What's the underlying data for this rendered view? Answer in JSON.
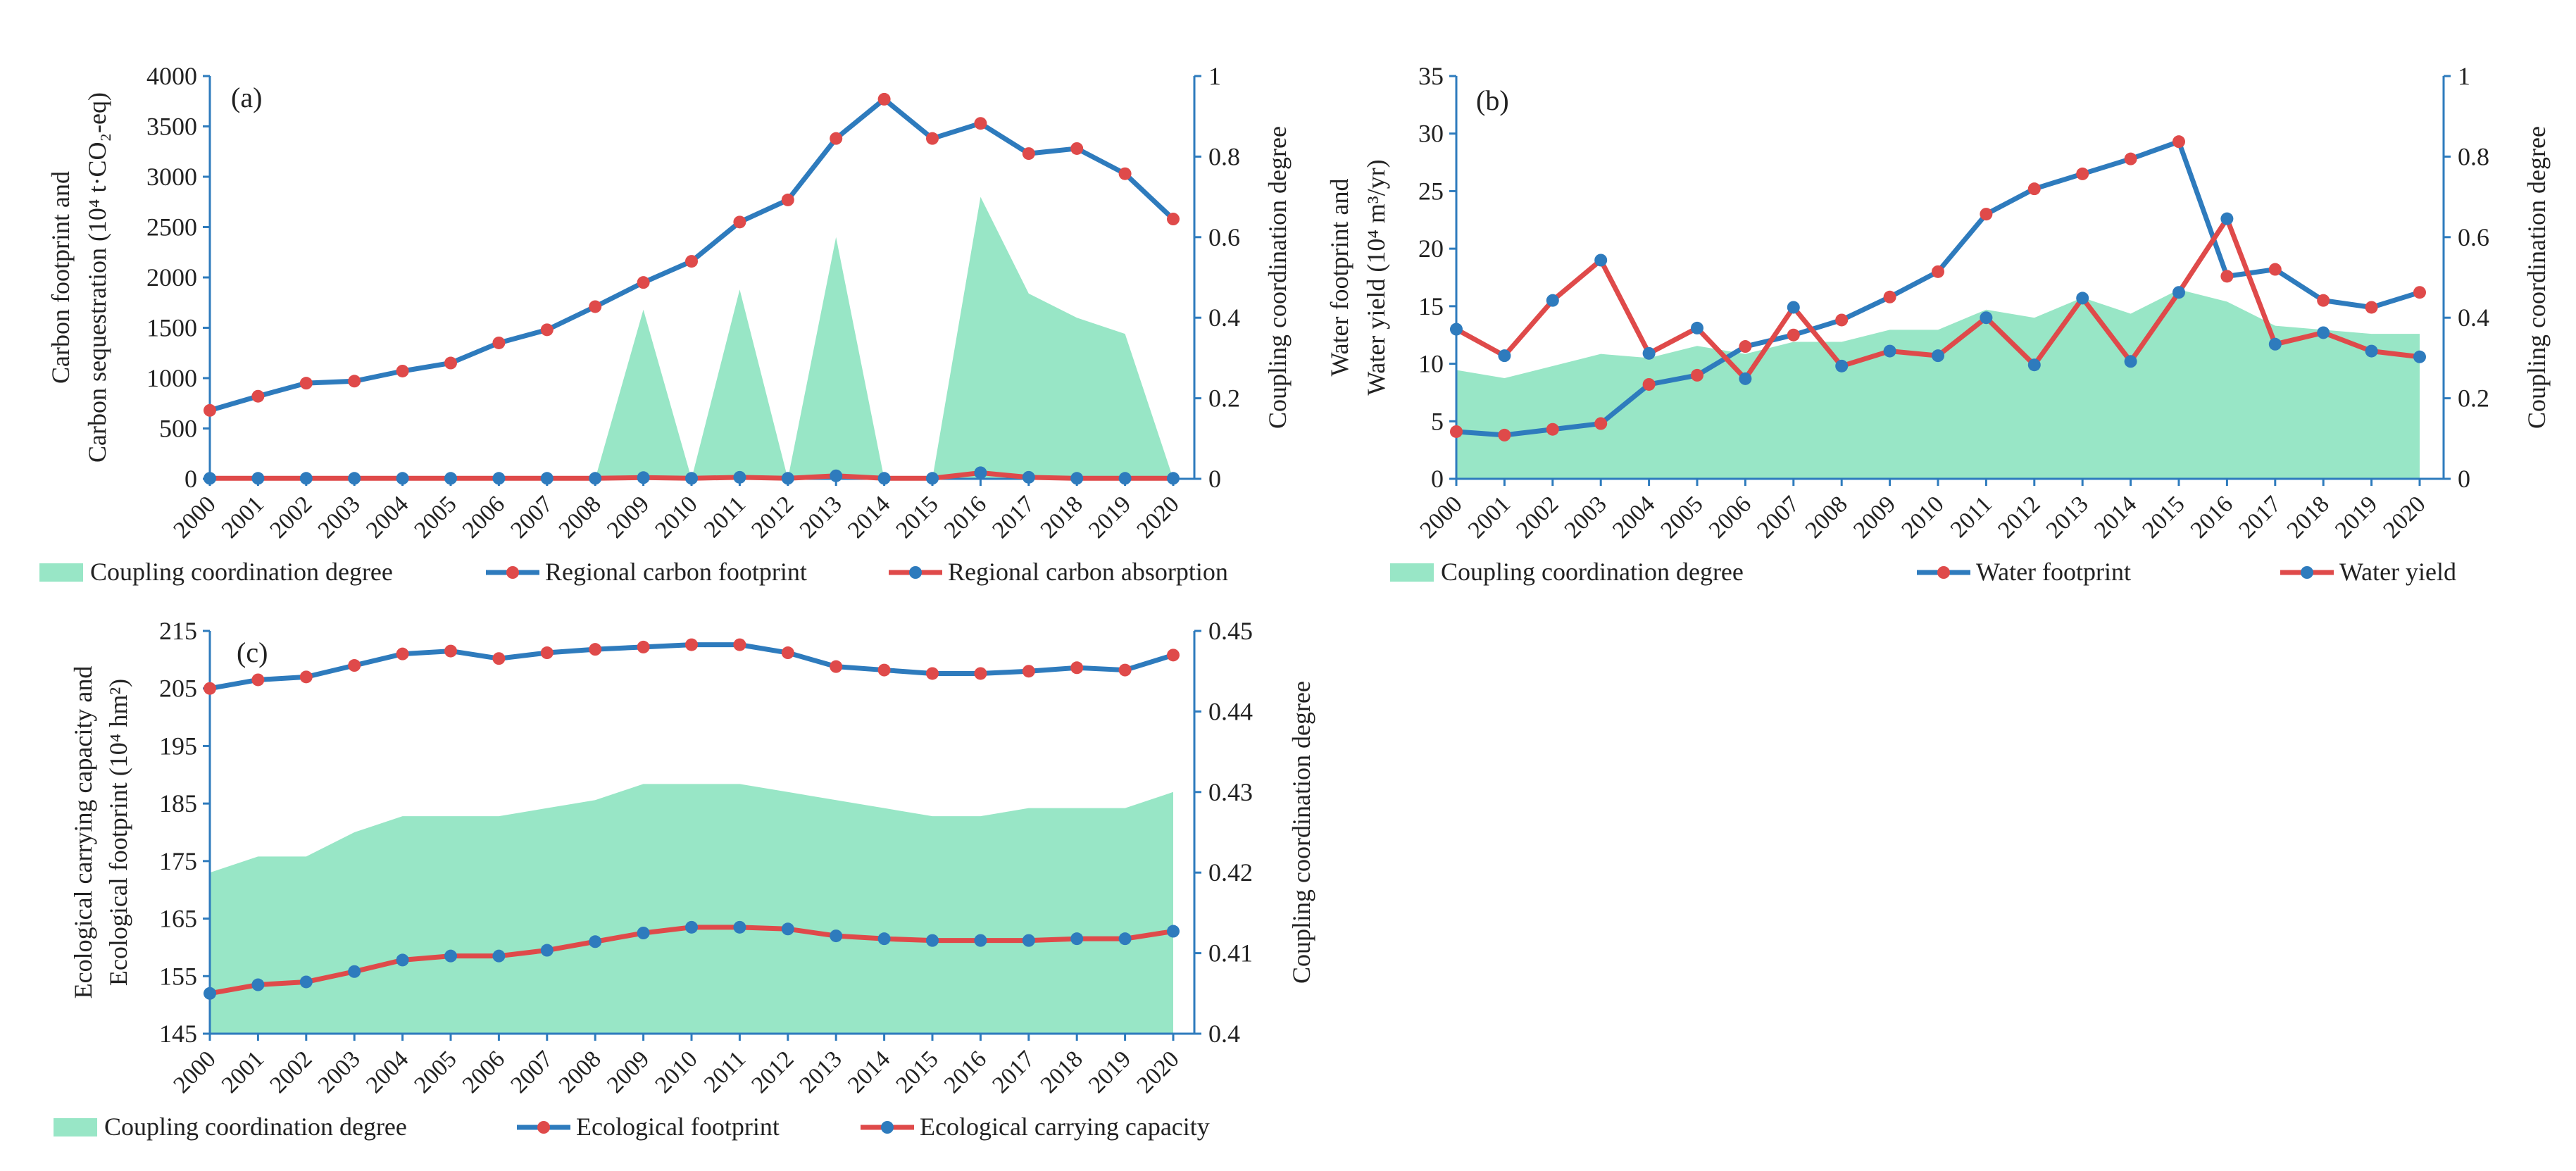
{
  "colors": {
    "area": "#98e6c6",
    "blue": "#2e7bbd",
    "red": "#df4a4a",
    "axis": "#2e7bbd"
  },
  "chart_data": [
    {
      "id": "a",
      "type": "line+area",
      "panel_label": "(a)",
      "x": [
        "2000",
        "2001",
        "2002",
        "2003",
        "2004",
        "2005",
        "2006",
        "2007",
        "2008",
        "2009",
        "2010",
        "2011",
        "2012",
        "2013",
        "2014",
        "2015",
        "2016",
        "2017",
        "2018",
        "2019",
        "2020"
      ],
      "ylabel_left": [
        "Carbon footprint  and",
        "Carbon sequestration  (10⁴ t·CO₂-eq)"
      ],
      "ylabel_right": "Coupling  coordination  degree",
      "ylim_left": [
        0,
        4000
      ],
      "yticks_left": [
        0,
        500,
        1000,
        1500,
        2000,
        2500,
        3000,
        3500,
        4000
      ],
      "ylim_right": [
        0,
        1
      ],
      "yticks_right": [
        "0",
        "0.2",
        "0.4",
        "0.6",
        "0.8",
        "1"
      ],
      "area_series": {
        "name": "Coupling coordination degree",
        "values": [
          0,
          0,
          0,
          0,
          0,
          0,
          0,
          0,
          0,
          0.42,
          0,
          0.47,
          0,
          0.6,
          0,
          0,
          0.7,
          0.46,
          0.4,
          0.36,
          0
        ]
      },
      "series": [
        {
          "name": "Regional carbon footprint",
          "line": "blue",
          "marker": "red",
          "values": [
            680,
            820,
            950,
            970,
            1070,
            1150,
            1350,
            1480,
            1710,
            1950,
            2160,
            2550,
            2770,
            3380,
            3770,
            3380,
            3530,
            3230,
            3280,
            3030,
            2580
          ]
        },
        {
          "name": "Regional carbon absorption",
          "line": "red",
          "marker": "blue",
          "values": [
            5,
            5,
            5,
            5,
            5,
            5,
            5,
            5,
            5,
            12,
            5,
            15,
            5,
            30,
            5,
            5,
            60,
            15,
            5,
            5,
            5
          ]
        }
      ]
    },
    {
      "id": "b",
      "type": "line+area",
      "panel_label": "(b)",
      "x": [
        "2000",
        "2001",
        "2002",
        "2003",
        "2004",
        "2005",
        "2006",
        "2007",
        "2008",
        "2009",
        "2010",
        "2011",
        "2012",
        "2013",
        "2014",
        "2015",
        "2016",
        "2017",
        "2018",
        "2019",
        "2020"
      ],
      "ylabel_left": [
        "Water footprint  and",
        "Water yield  (10⁴ m³/yr)"
      ],
      "ylabel_right": "Coupling  coordination  degree",
      "ylim_left": [
        0,
        35
      ],
      "yticks_left": [
        0,
        5,
        10,
        15,
        20,
        25,
        30,
        35
      ],
      "ylim_right": [
        0,
        1
      ],
      "yticks_right": [
        "0",
        "0.2",
        "0.4",
        "0.6",
        "0.8",
        "1"
      ],
      "area_series": {
        "name": "Coupling coordination degree",
        "values": [
          0.27,
          0.25,
          0.28,
          0.31,
          0.3,
          0.33,
          0.31,
          0.34,
          0.34,
          0.37,
          0.37,
          0.42,
          0.4,
          0.45,
          0.41,
          0.47,
          0.44,
          0.38,
          0.37,
          0.36,
          0.36
        ]
      },
      "series": [
        {
          "name": "Water footprint",
          "line": "blue",
          "marker": "red",
          "values": [
            4.1,
            3.8,
            4.3,
            4.8,
            8.2,
            9.0,
            11.5,
            12.5,
            13.8,
            15.8,
            18.0,
            23.0,
            25.2,
            26.5,
            27.8,
            29.3,
            17.6,
            18.2,
            15.5,
            14.9,
            16.2
          ]
        },
        {
          "name": "Water yield",
          "line": "red",
          "marker": "blue",
          "values": [
            13.0,
            10.7,
            15.5,
            19.0,
            10.9,
            13.1,
            8.7,
            14.9,
            9.8,
            11.1,
            10.7,
            14.0,
            9.9,
            15.7,
            10.2,
            16.2,
            22.6,
            11.7,
            12.7,
            11.1,
            10.6
          ]
        }
      ]
    },
    {
      "id": "c",
      "type": "line+area",
      "panel_label": "(c)",
      "x": [
        "2000",
        "2001",
        "2002",
        "2003",
        "2004",
        "2005",
        "2006",
        "2007",
        "2008",
        "2009",
        "2010",
        "2011",
        "2012",
        "2013",
        "2014",
        "2015",
        "2016",
        "2017",
        "2018",
        "2019",
        "2020"
      ],
      "ylabel_left": [
        "Ecological  carrying  capacity  and",
        "Ecological footprint  (10⁴ hm²)"
      ],
      "ylabel_right": "Coupling  coordination  degree",
      "ylim_left": [
        145,
        215
      ],
      "yticks_left": [
        145,
        155,
        165,
        175,
        185,
        195,
        205,
        215
      ],
      "ylim_right": [
        0.4,
        0.45
      ],
      "yticks_right": [
        "0.4",
        "0.41",
        "0.42",
        "0.43",
        "0.44",
        "0.45"
      ],
      "area_series": {
        "name": "Coupling coordination degree",
        "values": [
          0.42,
          0.422,
          0.422,
          0.425,
          0.427,
          0.427,
          0.427,
          0.428,
          0.429,
          0.431,
          0.431,
          0.431,
          0.43,
          0.429,
          0.428,
          0.427,
          0.427,
          0.428,
          0.428,
          0.428,
          0.43
        ]
      },
      "series": [
        {
          "name": "Ecological footprint",
          "line": "blue",
          "marker": "red",
          "values": [
            205,
            206.5,
            207,
            209,
            211,
            211.5,
            210.2,
            211.2,
            211.8,
            212.2,
            212.6,
            212.6,
            211.2,
            208.8,
            208.2,
            207.6,
            207.6,
            208,
            208.6,
            208.2,
            210.8
          ]
        },
        {
          "name": "Ecological carrying capacity",
          "line": "red",
          "marker": "blue",
          "values": [
            152,
            153.5,
            154,
            155.8,
            157.8,
            158.5,
            158.5,
            159.5,
            161,
            162.5,
            163.5,
            163.5,
            163.2,
            162,
            161.5,
            161.2,
            161.2,
            161.2,
            161.5,
            161.5,
            162.8
          ]
        }
      ]
    }
  ]
}
